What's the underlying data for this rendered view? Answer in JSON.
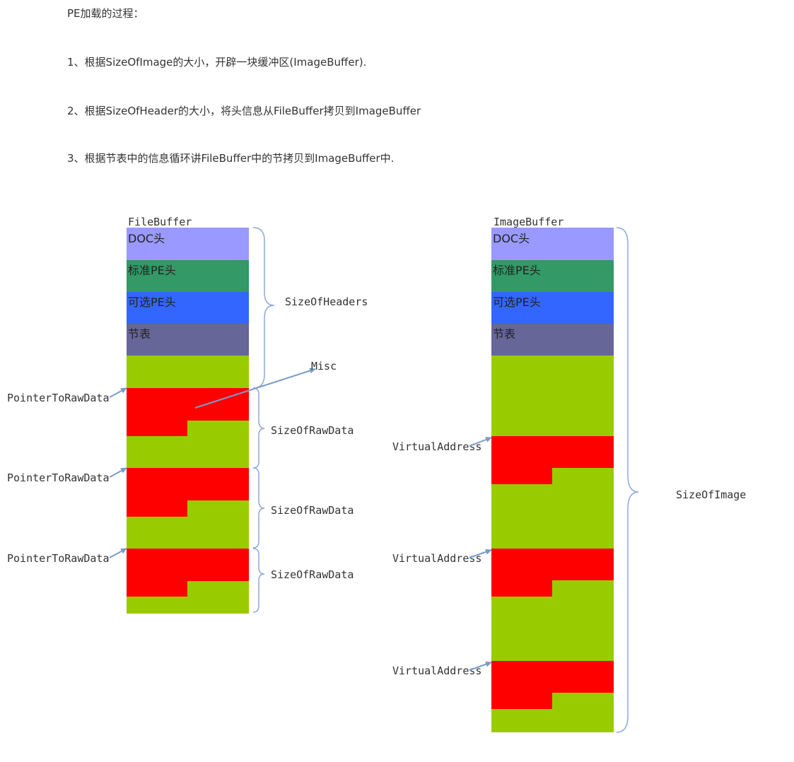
{
  "text": {
    "title": "PE加载的过程：",
    "step1": "1、根据SizeOfImage的大小，开辟一块缓冲区(ImageBuffer).",
    "step2": "2、根据SizeOfHeader的大小，将头信息从FileBuffer拷贝到ImageBuffer",
    "step3": "3、根据节表中的信息循环讲FileBuffer中的节拷贝到ImageBuffer中."
  },
  "diagram": {
    "file_buffer_label": "FileBuffer",
    "image_buffer_label": "ImageBuffer",
    "header_blocks": [
      "DOC头",
      "标准PE头",
      "可选PE头",
      "节表"
    ],
    "size_of_headers": "SizeOfHeaders",
    "misc": "Misc",
    "pointer_to_raw_data": "PointerToRawData",
    "size_of_raw_data": "SizeOfRawData",
    "virtual_address": "VirtualAddress",
    "size_of_image": "SizeOfImage"
  },
  "colors": {
    "doc_header": "#9999ff",
    "pe_header": "#339966",
    "optional_header": "#3366ff",
    "section_table": "#666699",
    "padding_green": "#99cc00",
    "section_red": "#ff0000",
    "arrow": "#7a9cc6",
    "brace": "#8ea9d8"
  }
}
